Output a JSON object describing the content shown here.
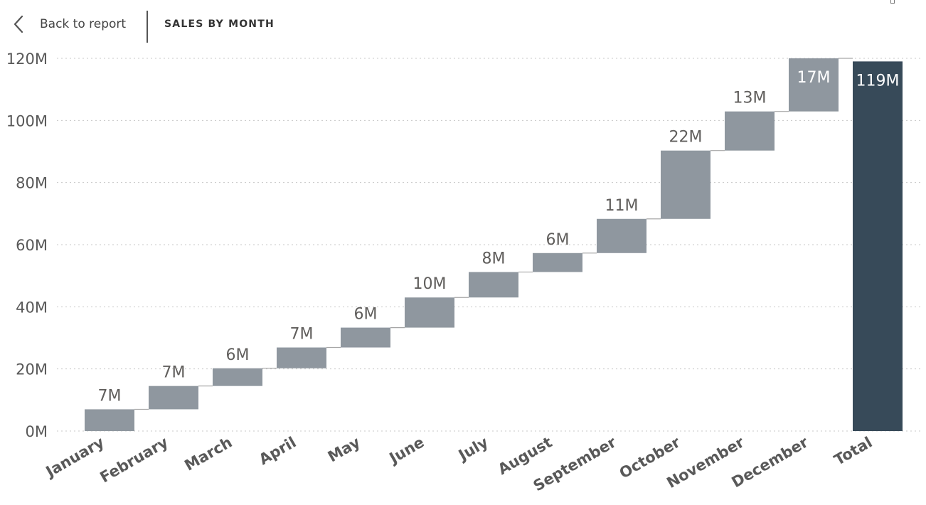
{
  "header": {
    "back_label": "Back to report",
    "title": "SALES BY MONTH"
  },
  "colors": {
    "increase": "#8f979f",
    "total": "#374a59",
    "label": "#605e5c",
    "total_label": "#ffffff",
    "grid": "#c8c8c8",
    "axis_text": "#595959"
  },
  "chart_data": {
    "type": "waterfall",
    "title": "",
    "xlabel": "",
    "ylabel": "",
    "unit": "M",
    "ylim": [
      0,
      120
    ],
    "yticks": [
      0,
      20,
      40,
      60,
      80,
      100,
      120
    ],
    "ytick_labels": [
      "0M",
      "20M",
      "40M",
      "60M",
      "80M",
      "100M",
      "120M"
    ],
    "grid": true,
    "categories": [
      "January",
      "February",
      "March",
      "April",
      "May",
      "June",
      "July",
      "August",
      "September",
      "October",
      "November",
      "December",
      "Total"
    ],
    "values": [
      7,
      7.5,
      5.7,
      6.7,
      6.4,
      9.7,
      8.2,
      6.1,
      11,
      22,
      12.6,
      17.1,
      119
    ],
    "labels": [
      "7M",
      "7M",
      "6M",
      "7M",
      "6M",
      "10M",
      "8M",
      "6M",
      "11M",
      "22M",
      "13M",
      "17M",
      "119M"
    ],
    "is_total": [
      false,
      false,
      false,
      false,
      false,
      false,
      false,
      false,
      false,
      false,
      false,
      false,
      true
    ]
  }
}
